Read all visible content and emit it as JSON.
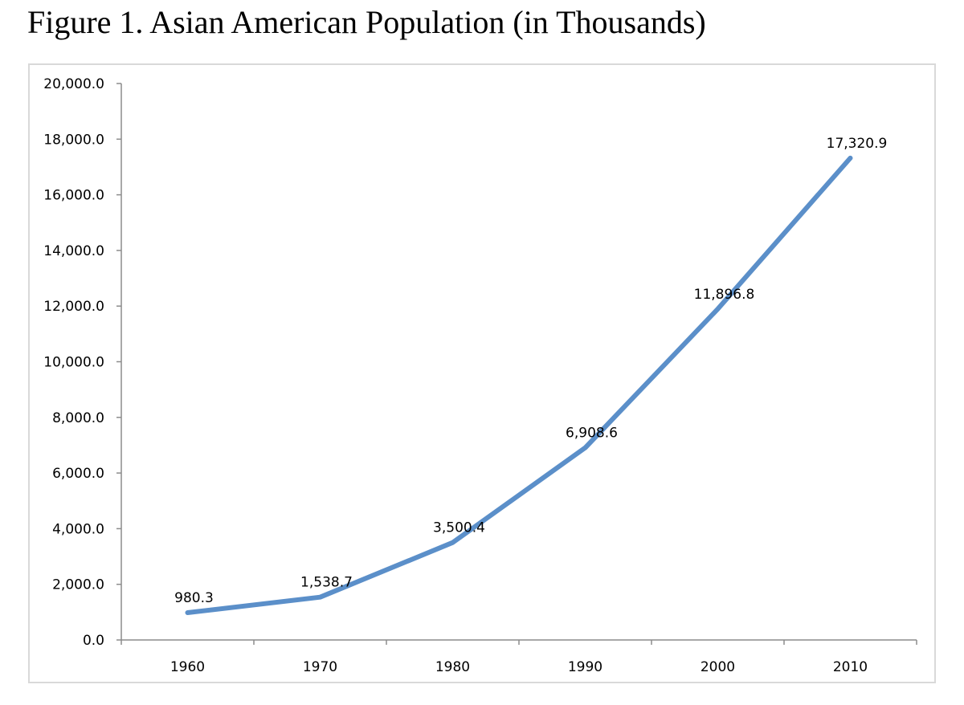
{
  "figure": {
    "title": "Figure 1. Asian American Population (in Thousands)"
  },
  "chart_data": {
    "type": "line",
    "title": "Figure 1. Asian American Population (in Thousands)",
    "xlabel": "",
    "ylabel": "",
    "categories": [
      "1960",
      "1970",
      "1980",
      "1990",
      "2000",
      "2010"
    ],
    "series": [
      {
        "name": "Asian American Population",
        "values": [
          980.3,
          1538.7,
          3500.4,
          6908.6,
          11896.8,
          17320.9
        ],
        "data_labels": [
          "980.3",
          "1,538.7",
          "3,500.4",
          "6,908.6",
          "11,896.8",
          "17,320.9"
        ],
        "color": "#5b8fc9"
      }
    ],
    "ylim": [
      0,
      20000
    ],
    "y_ticks": [
      "0.0",
      "2,000.0",
      "4,000.0",
      "6,000.0",
      "8,000.0",
      "10,000.0",
      "12,000.0",
      "14,000.0",
      "16,000.0",
      "18,000.0",
      "20,000.0"
    ],
    "grid": false,
    "legend": "none"
  }
}
